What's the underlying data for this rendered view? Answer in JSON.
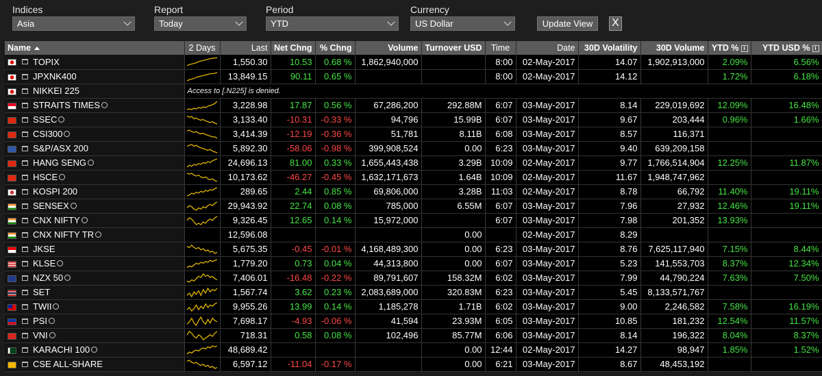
{
  "filters": {
    "indices": {
      "label": "Indices",
      "value": "Asia"
    },
    "report": {
      "label": "Report",
      "value": "Today"
    },
    "period": {
      "label": "Period",
      "value": "YTD"
    },
    "currency": {
      "label": "Currency",
      "value": "US Dollar"
    },
    "update_label": "Update View",
    "close_label": "X"
  },
  "columns": {
    "name": "Name",
    "days": "2 Days",
    "last": "Last",
    "netchng": "Net Chng",
    "pctchng": "% Chng",
    "volume": "Volume",
    "turnover": "Turnover USD",
    "time": "Time",
    "date": "Date",
    "vol30": "30D Volatility",
    "volume30": "30D Volume",
    "ytd": "YTD %",
    "ytdusd": "YTD USD %"
  },
  "denied_text": "Access to [.N225] is denied.",
  "colors": {
    "positive": "#45e645",
    "negative": "#ff4747",
    "sparkline": "#f2c200"
  },
  "rows": [
    {
      "name": "TOPIX",
      "flag": "jp",
      "info": false,
      "spark": [
        1,
        3,
        4,
        5,
        6,
        8,
        9,
        10,
        11,
        12,
        13,
        14,
        14,
        15
      ],
      "last": "1,550.30",
      "net": "10.53",
      "pct": "0.68 %",
      "dir": "pos",
      "volume": "1,862,940,000",
      "turnover": "",
      "time": "8:00",
      "date": "02-May-2017",
      "vol30": "14.07",
      "volume30": "1,902,913,000",
      "ytd": "2.09%",
      "ytdusd": "6.56%"
    },
    {
      "name": "JPXNK400",
      "flag": "jp",
      "info": false,
      "spark": [
        1,
        3,
        4,
        5,
        7,
        8,
        9,
        10,
        11,
        12,
        13,
        13,
        14,
        15
      ],
      "last": "13,849.15",
      "net": "90.11",
      "pct": "0.65 %",
      "dir": "pos",
      "volume": "",
      "turnover": "",
      "time": "8:00",
      "date": "02-May-2017",
      "vol30": "14.12",
      "volume30": "",
      "ytd": "1.72%",
      "ytdusd": "6.18%"
    },
    {
      "name": "NIKKEI 225",
      "flag": "jp",
      "info": false,
      "denied": true
    },
    {
      "name": "STRAITS TIMES",
      "flag": "sg",
      "info": true,
      "spark": [
        3,
        4,
        3,
        5,
        4,
        6,
        5,
        7,
        6,
        8,
        9,
        10,
        12,
        15
      ],
      "last": "3,228.98",
      "net": "17.87",
      "pct": "0.56 %",
      "dir": "pos",
      "volume": "67,286,200",
      "turnover": "292.88M",
      "time": "6:07",
      "date": "03-May-2017",
      "vol30": "8.14",
      "volume30": "229,019,692",
      "ytd": "12.09%",
      "ytdusd": "16.48%"
    },
    {
      "name": "SSEC",
      "flag": "cn",
      "info": true,
      "spark": [
        14,
        12,
        13,
        10,
        11,
        9,
        8,
        9,
        7,
        6,
        5,
        6,
        4,
        3
      ],
      "last": "3,133.40",
      "net": "-10.31",
      "pct": "-0.33 %",
      "dir": "neg",
      "volume": "94,796",
      "turnover": "15.99B",
      "time": "6:07",
      "date": "03-May-2017",
      "vol30": "9.67",
      "volume30": "203,444",
      "ytd": "0.96%",
      "ytdusd": "1.66%"
    },
    {
      "name": "CSI300",
      "flag": "cn",
      "info": true,
      "spark": [
        13,
        14,
        12,
        11,
        12,
        10,
        9,
        10,
        8,
        7,
        6,
        5,
        5,
        3
      ],
      "last": "3,414.39",
      "net": "-12.19",
      "pct": "-0.36 %",
      "dir": "neg",
      "volume": "51,781",
      "turnover": "8.11B",
      "time": "6:08",
      "date": "03-May-2017",
      "vol30": "8.57",
      "volume30": "116,371",
      "ytd": "",
      "ytdusd": ""
    },
    {
      "name": "S&P/ASX 200",
      "flag": "au",
      "info": false,
      "spark": [
        12,
        13,
        14,
        12,
        13,
        11,
        10,
        9,
        8,
        7,
        8,
        6,
        5,
        4
      ],
      "last": "5,892.30",
      "net": "-58.06",
      "pct": "-0.98 %",
      "dir": "neg",
      "volume": "399,908,524",
      "turnover": "0.00",
      "time": "6:23",
      "date": "03-May-2017",
      "vol30": "9.40",
      "volume30": "639,209,158",
      "ytd": "",
      "ytdusd": ""
    },
    {
      "name": "HANG SENG",
      "flag": "hk",
      "info": true,
      "spark": [
        4,
        6,
        5,
        7,
        6,
        8,
        7,
        9,
        8,
        10,
        9,
        11,
        12,
        13
      ],
      "last": "24,696.13",
      "net": "81.00",
      "pct": "0.33 %",
      "dir": "pos",
      "volume": "1,655,443,438",
      "turnover": "3.29B",
      "time": "10:09",
      "date": "02-May-2017",
      "vol30": "9.77",
      "volume30": "1,766,514,904",
      "ytd": "12.25%",
      "ytdusd": "11.87%"
    },
    {
      "name": "HSCE",
      "flag": "hk",
      "info": true,
      "spark": [
        13,
        12,
        13,
        11,
        10,
        11,
        9,
        8,
        9,
        7,
        6,
        7,
        5,
        4
      ],
      "last": "10,173.62",
      "net": "-46.27",
      "pct": "-0.45 %",
      "dir": "neg",
      "volume": "1,632,171,673",
      "turnover": "1.64B",
      "time": "10:09",
      "date": "02-May-2017",
      "vol30": "11.67",
      "volume30": "1,948,747,962",
      "ytd": "",
      "ytdusd": ""
    },
    {
      "name": "KOSPI 200",
      "flag": "kr",
      "info": false,
      "spark": [
        5,
        6,
        8,
        7,
        9,
        8,
        10,
        9,
        11,
        10,
        12,
        11,
        13,
        14
      ],
      "last": "289.65",
      "net": "2.44",
      "pct": "0.85 %",
      "dir": "pos",
      "volume": "69,806,000",
      "turnover": "3.28B",
      "time": "11:03",
      "date": "02-May-2017",
      "vol30": "8.78",
      "volume30": "66,792",
      "ytd": "11.40%",
      "ytdusd": "19.11%"
    },
    {
      "name": "SENSEX",
      "flag": "in",
      "info": true,
      "spark": [
        8,
        10,
        9,
        7,
        6,
        8,
        7,
        9,
        8,
        10,
        11,
        10,
        12,
        13
      ],
      "last": "29,943.92",
      "net": "22.74",
      "pct": "0.08 %",
      "dir": "pos",
      "volume": "785,000",
      "turnover": "6.55M",
      "time": "6:07",
      "date": "03-May-2017",
      "vol30": "7.96",
      "volume30": "27,932",
      "ytd": "12.46%",
      "ytdusd": "19.11%"
    },
    {
      "name": "CNX NIFTY",
      "flag": "in",
      "info": true,
      "spark": [
        9,
        11,
        10,
        8,
        6,
        7,
        6,
        8,
        7,
        9,
        10,
        9,
        11,
        12
      ],
      "last": "9,326.45",
      "net": "12.65",
      "pct": "0.14 %",
      "dir": "pos",
      "volume": "15,972,000",
      "turnover": "",
      "time": "6:07",
      "date": "03-May-2017",
      "vol30": "7.98",
      "volume30": "201,352",
      "ytd": "13.93%",
      "ytdusd": ""
    },
    {
      "name": "CNX NIFTY TR",
      "flag": "in",
      "info": true,
      "nospark": true,
      "last": "12,596.08",
      "net": "",
      "pct": "",
      "dir": "pos",
      "volume": "",
      "turnover": "0.00",
      "time": "",
      "date": "02-May-2017",
      "vol30": "8.29",
      "volume30": "",
      "ytd": "",
      "ytdusd": ""
    },
    {
      "name": "JKSE",
      "flag": "id",
      "info": false,
      "spark": [
        13,
        12,
        14,
        12,
        11,
        12,
        10,
        11,
        9,
        10,
        8,
        9,
        7,
        8
      ],
      "last": "5,675.35",
      "net": "-0.45",
      "pct": "-0.01 %",
      "dir": "neg",
      "volume": "4,168,489,300",
      "turnover": "0.00",
      "time": "6:23",
      "date": "03-May-2017",
      "vol30": "8.76",
      "volume30": "7,625,117,940",
      "ytd": "7.15%",
      "ytdusd": "8.44%"
    },
    {
      "name": "KLSE",
      "flag": "my",
      "info": true,
      "spark": [
        4,
        6,
        5,
        7,
        9,
        8,
        10,
        9,
        11,
        10,
        12,
        11,
        12,
        13
      ],
      "last": "1,779.20",
      "net": "0.73",
      "pct": "0.04 %",
      "dir": "pos",
      "volume": "44,313,800",
      "turnover": "0.00",
      "time": "6:07",
      "date": "03-May-2017",
      "vol30": "5.23",
      "volume30": "141,553,703",
      "ytd": "8.37%",
      "ytdusd": "12.34%"
    },
    {
      "name": "NZX 50",
      "flag": "nz",
      "info": true,
      "spark": [
        6,
        5,
        7,
        6,
        8,
        10,
        9,
        12,
        10,
        11,
        9,
        10,
        8,
        7
      ],
      "last": "7,406.01",
      "net": "-16.48",
      "pct": "-0.22 %",
      "dir": "neg",
      "volume": "89,791,607",
      "turnover": "158.32M",
      "time": "6:02",
      "date": "03-May-2017",
      "vol30": "7.99",
      "volume30": "44,790,224",
      "ytd": "7.63%",
      "ytdusd": "7.50%"
    },
    {
      "name": "SET",
      "flag": "th",
      "info": false,
      "spark": [
        7,
        9,
        6,
        10,
        8,
        11,
        7,
        12,
        9,
        13,
        10,
        12,
        11,
        13
      ],
      "last": "1,567.74",
      "net": "3.62",
      "pct": "0.23 %",
      "dir": "pos",
      "volume": "2,083,689,000",
      "turnover": "320.83M",
      "time": "6:23",
      "date": "03-May-2017",
      "vol30": "5.45",
      "volume30": "8,133,571,767",
      "ytd": "",
      "ytdusd": ""
    },
    {
      "name": "TWII",
      "flag": "tw",
      "info": true,
      "spark": [
        8,
        10,
        7,
        9,
        12,
        8,
        11,
        9,
        13,
        10,
        12,
        11,
        13,
        14
      ],
      "last": "9,955.26",
      "net": "13.99",
      "pct": "0.14 %",
      "dir": "pos",
      "volume": "1,185,278",
      "turnover": "1.71B",
      "time": "6:02",
      "date": "03-May-2017",
      "vol30": "9.00",
      "volume30": "2,246,582",
      "ytd": "7.58%",
      "ytdusd": "16.19%"
    },
    {
      "name": "PSI",
      "flag": "ph",
      "info": true,
      "spark": [
        7,
        9,
        12,
        8,
        6,
        10,
        13,
        9,
        7,
        11,
        8,
        12,
        10,
        9
      ],
      "last": "7,698.17",
      "net": "-4.93",
      "pct": "-0.06 %",
      "dir": "neg",
      "volume": "41,594",
      "turnover": "23.93M",
      "time": "6:05",
      "date": "03-May-2017",
      "vol30": "10.85",
      "volume30": "181,232",
      "ytd": "12.54%",
      "ytdusd": "11.57%"
    },
    {
      "name": "VNI",
      "flag": "vn",
      "info": true,
      "spark": [
        10,
        12,
        11,
        9,
        8,
        10,
        9,
        7,
        8,
        9,
        10,
        9,
        11,
        12
      ],
      "last": "718.31",
      "net": "0.58",
      "pct": "0.08 %",
      "dir": "pos",
      "volume": "102,496",
      "turnover": "85.77M",
      "time": "6:06",
      "date": "03-May-2017",
      "vol30": "8.14",
      "volume30": "196,322",
      "ytd": "8.04%",
      "ytdusd": "8.37%"
    },
    {
      "name": "KARACHI 100",
      "flag": "pk",
      "info": true,
      "spark": [
        5,
        7,
        6,
        8,
        9,
        8,
        10,
        11,
        10,
        12,
        11,
        13,
        12,
        13
      ],
      "last": "48,689.42",
      "net": "",
      "pct": "",
      "dir": "pos",
      "volume": "",
      "turnover": "0.00",
      "time": "12:44",
      "date": "02-May-2017",
      "vol30": "14.27",
      "volume30": "98,947",
      "ytd": "1.85%",
      "ytdusd": "1.52%"
    },
    {
      "name": "CSE ALL-SHARE",
      "flag": "lk",
      "info": false,
      "spark": [
        12,
        13,
        11,
        10,
        11,
        9,
        8,
        9,
        7,
        8,
        6,
        7,
        5,
        6
      ],
      "last": "6,597.12",
      "net": "-11.04",
      "pct": "-0.17 %",
      "dir": "neg",
      "volume": "",
      "turnover": "0.00",
      "time": "6:21",
      "date": "03-May-2017",
      "vol30": "8.67",
      "volume30": "48,453,192",
      "ytd": "",
      "ytdusd": ""
    }
  ]
}
